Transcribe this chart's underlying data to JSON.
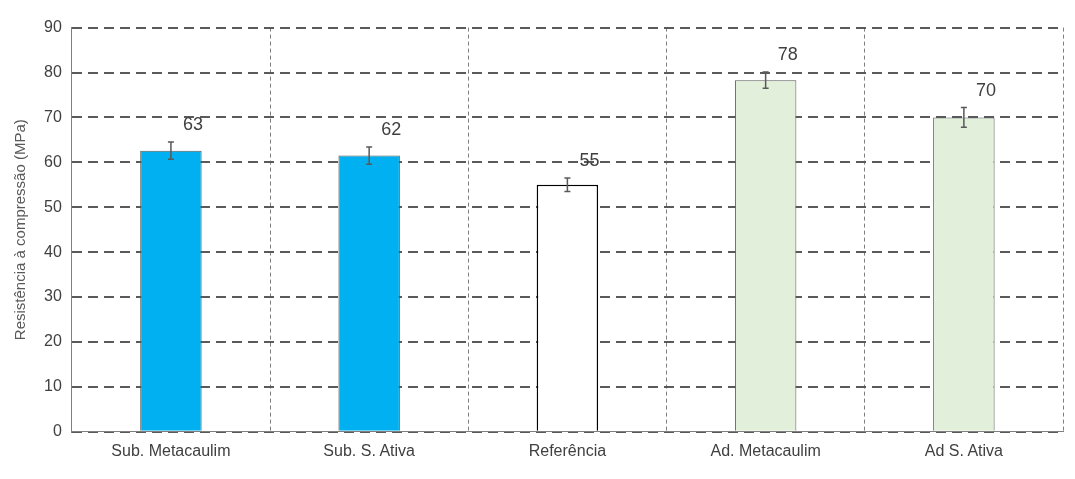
{
  "chart_data": {
    "type": "bar",
    "ylabel": "Resistência à compressão (MPa)",
    "categories": [
      "Sub. Metacaulim",
      "Sub. S. Ativa",
      "Referência",
      "Ad. Metacaulim",
      "Ad S. Ativa"
    ],
    "values": [
      62.6,
      61.5,
      55,
      78.3,
      70
    ],
    "colors": [
      "#00b0f0",
      "#00b0f0",
      "#ffffff",
      "#e2efda",
      "#e2efda"
    ],
    "errors": [
      1.9,
      1.9,
      1.5,
      1.8,
      2.2
    ],
    "value_labels": [
      "63",
      "62",
      "55",
      "78",
      "70"
    ],
    "ylim": [
      0,
      90
    ],
    "yticks": [
      0,
      10,
      20,
      30,
      40,
      50,
      60,
      70,
      80,
      90
    ],
    "grid": true,
    "legend": false
  }
}
